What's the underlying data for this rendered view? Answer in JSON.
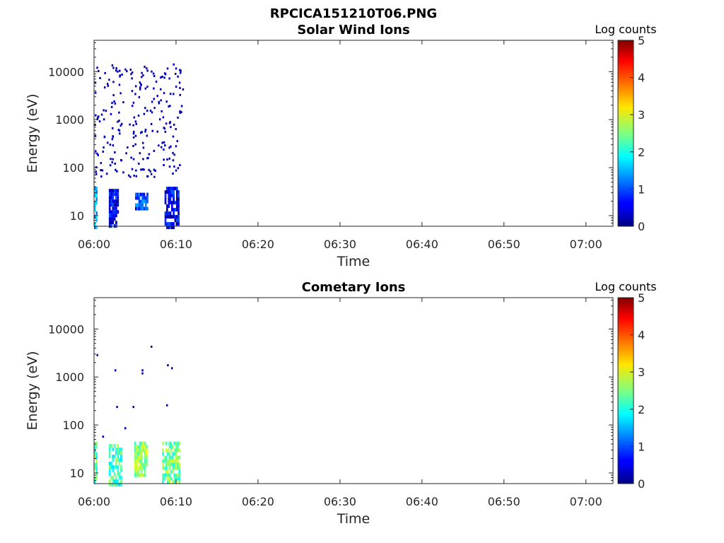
{
  "figure_title": "RPCICA151210T06.PNG",
  "chart_data": [
    {
      "type": "heatmap",
      "title": "Solar Wind Ions",
      "xlabel": "Time",
      "ylabel": "Energy (eV)",
      "x_tick_labels": [
        "06:00",
        "06:10",
        "06:20",
        "06:30",
        "06:40",
        "06:50",
        "07:00"
      ],
      "x_tick_minutes": [
        0,
        10,
        20,
        30,
        40,
        50,
        60
      ],
      "xlim_minutes": [
        0,
        63.3
      ],
      "y_scale": "log",
      "ylim": [
        6,
        45000
      ],
      "y_tick_values": [
        10,
        100,
        1000,
        10000
      ],
      "y_tick_labels": [
        "10",
        "100",
        "1000",
        "10000"
      ],
      "colorbar": {
        "label": "Log counts",
        "range": [
          0,
          5
        ],
        "tick_labels": [
          "0",
          "1",
          "2",
          "3",
          "4",
          "5"
        ],
        "colormap": "jet"
      },
      "data_extent_minutes": [
        0,
        10.8
      ],
      "clusters": [
        {
          "t_start": 0.0,
          "t_end": 0.3,
          "e_min": 6,
          "e_max": 40,
          "log_counts": 1.4
        },
        {
          "t_start": 1.8,
          "t_end": 3.0,
          "e_min": 6,
          "e_max": 36,
          "log_counts": 0.6
        },
        {
          "t_start": 5.0,
          "t_end": 6.5,
          "e_min": 13,
          "e_max": 30,
          "log_counts": 1.0
        },
        {
          "t_start": 8.6,
          "t_end": 10.2,
          "e_min": 6,
          "e_max": 40,
          "log_counts": 0.6
        }
      ],
      "scatter_energy_range": [
        60,
        15000
      ],
      "scatter_count": 240,
      "scatter_log_counts": 0.2
    },
    {
      "type": "heatmap",
      "title": "Cometary Ions",
      "xlabel": "Time",
      "ylabel": "Energy (eV)",
      "x_tick_labels": [
        "06:00",
        "06:10",
        "06:20",
        "06:30",
        "06:40",
        "06:50",
        "07:00"
      ],
      "x_tick_minutes": [
        0,
        10,
        20,
        30,
        40,
        50,
        60
      ],
      "xlim_minutes": [
        0,
        63.3
      ],
      "y_scale": "log",
      "ylim": [
        6,
        45000
      ],
      "y_tick_values": [
        10,
        100,
        1000,
        10000
      ],
      "y_tick_labels": [
        "10",
        "100",
        "1000",
        "10000"
      ],
      "colorbar": {
        "label": "Log counts",
        "range": [
          0,
          5
        ],
        "tick_labels": [
          "0",
          "1",
          "2",
          "3",
          "4",
          "5"
        ],
        "colormap": "jet"
      },
      "data_extent_minutes": [
        0,
        10.8
      ],
      "clusters": [
        {
          "t_start": 0.0,
          "t_end": 0.4,
          "e_min": 6,
          "e_max": 45,
          "log_counts": 2.3
        },
        {
          "t_start": 1.8,
          "t_end": 3.4,
          "e_min": 6,
          "e_max": 40,
          "log_counts": 2.2
        },
        {
          "t_start": 4.9,
          "t_end": 6.5,
          "e_min": 9,
          "e_max": 45,
          "log_counts": 2.6
        },
        {
          "t_start": 8.3,
          "t_end": 10.4,
          "e_min": 6,
          "e_max": 45,
          "log_counts": 2.4
        }
      ],
      "sparse_points": [
        {
          "t": 0.3,
          "e": 3000
        },
        {
          "t": 2.5,
          "e": 1450
        },
        {
          "t": 5.8,
          "e": 1450
        },
        {
          "t": 5.8,
          "e": 1250
        },
        {
          "t": 6.9,
          "e": 4500
        },
        {
          "t": 8.9,
          "e": 1850
        },
        {
          "t": 9.4,
          "e": 1600
        },
        {
          "t": 2.7,
          "e": 250
        },
        {
          "t": 4.7,
          "e": 250
        },
        {
          "t": 8.8,
          "e": 270
        },
        {
          "t": 3.7,
          "e": 90
        },
        {
          "t": 1.0,
          "e": 60
        }
      ]
    }
  ]
}
